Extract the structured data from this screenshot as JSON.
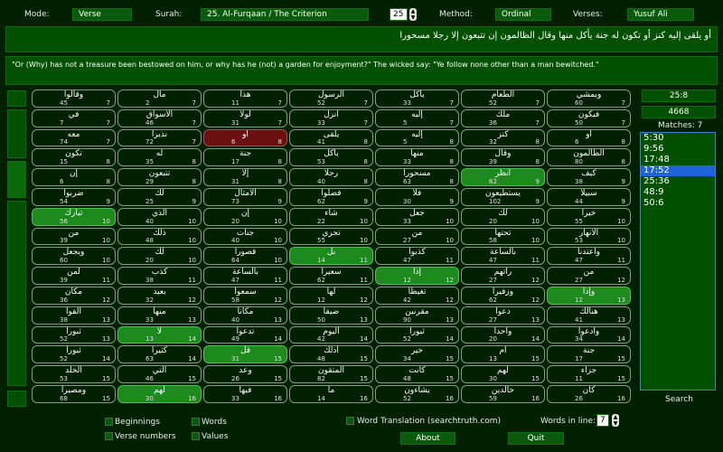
{
  "header": {
    "mode_label": "Mode:",
    "mode_value": "Verse",
    "surah_label": "Surah:",
    "surah_value": "25. Al-Furqaan / The Criterion",
    "verse_number": "25",
    "method_label": "Method:",
    "method_value": "Ordinal",
    "verses_label": "Verses:",
    "verses_value": "Yusuf Ali"
  },
  "arabic_text": "أو يلقى إليه كنز أو تكون له جنة يأكل منها وقال الظالمون إن تتبعون إلا رجلا مسحورا",
  "translation": "\"Or (Why) has not a treasure been bestowed on him, or why has he (not) a garden for enjoyment?\" The wicked say: \"Ye follow none other than a man bewitched.\"",
  "grid_rows": [
    [
      {
        "w": "وقالوا",
        "n": "45",
        "v": "7"
      },
      {
        "w": "مال",
        "n": "2",
        "v": "7"
      },
      {
        "w": "هذا",
        "n": "11",
        "v": "7"
      },
      {
        "w": "الرسول",
        "n": "52",
        "v": "7"
      },
      {
        "w": "يأكل",
        "n": "33",
        "v": "7"
      },
      {
        "w": "الطعام",
        "n": "52",
        "v": "7"
      },
      {
        "w": "ويمشي",
        "n": "60",
        "v": "7"
      }
    ],
    [
      {
        "w": "في",
        "n": "7",
        "v": "7"
      },
      {
        "w": "الأسواق",
        "n": "46",
        "v": "7"
      },
      {
        "w": "لولا",
        "n": "31",
        "v": "7"
      },
      {
        "w": "انزل",
        "n": "33",
        "v": "7"
      },
      {
        "w": "إليه",
        "n": "5",
        "v": "7"
      },
      {
        "w": "ملك",
        "n": "36",
        "v": "7"
      },
      {
        "w": "فيكون",
        "n": "50",
        "v": "7"
      }
    ],
    [
      {
        "w": "معه",
        "n": "74",
        "v": "7"
      },
      {
        "w": "نذيرا",
        "n": "72",
        "v": "7"
      },
      {
        "w": "أو",
        "n": "6",
        "v": "8",
        "s": "sel"
      },
      {
        "w": "يلقى",
        "n": "41",
        "v": "8"
      },
      {
        "w": "إليه",
        "n": "5",
        "v": "8"
      },
      {
        "w": "كنز",
        "n": "32",
        "v": "8"
      },
      {
        "w": "أو",
        "n": "6",
        "v": "8"
      }
    ],
    [
      {
        "w": "تكون",
        "n": "15",
        "v": "8"
      },
      {
        "w": "له",
        "n": "35",
        "v": "8"
      },
      {
        "w": "جنة",
        "n": "17",
        "v": "8"
      },
      {
        "w": "يأكل",
        "n": "53",
        "v": "8"
      },
      {
        "w": "منها",
        "n": "33",
        "v": "8"
      },
      {
        "w": "وقال",
        "n": "39",
        "v": "8"
      },
      {
        "w": "الظالمون",
        "n": "80",
        "v": "8"
      }
    ],
    [
      {
        "w": "إن",
        "n": "6",
        "v": "8"
      },
      {
        "w": "تتبعون",
        "n": "29",
        "v": "8"
      },
      {
        "w": "إلا",
        "n": "31",
        "v": "8"
      },
      {
        "w": "رجلا",
        "n": "40",
        "v": "8"
      },
      {
        "w": "مسحورا",
        "n": "63",
        "v": "8"
      },
      {
        "w": "انظر",
        "n": "62",
        "v": "9",
        "s": "hl"
      },
      {
        "w": "كيف",
        "n": "38",
        "v": "9"
      }
    ],
    [
      {
        "w": "ضربوا",
        "n": "54",
        "v": "9"
      },
      {
        "w": "لك",
        "n": "25",
        "v": "9"
      },
      {
        "w": "الأمثال",
        "n": "73",
        "v": "9"
      },
      {
        "w": "فضلوا",
        "n": "62",
        "v": "9"
      },
      {
        "w": "فلا",
        "n": "30",
        "v": "9"
      },
      {
        "w": "يستطيعون",
        "n": "102",
        "v": "9"
      },
      {
        "w": "سبيلا",
        "n": "44",
        "v": "9"
      }
    ],
    [
      {
        "w": "تبارك",
        "n": "56",
        "v": "10",
        "s": "hl"
      },
      {
        "w": "الذي",
        "n": "40",
        "v": "10"
      },
      {
        "w": "إن",
        "n": "20",
        "v": "10"
      },
      {
        "w": "شاء",
        "n": "22",
        "v": "10"
      },
      {
        "w": "جعل",
        "n": "33",
        "v": "10"
      },
      {
        "w": "لك",
        "n": "20",
        "v": "10"
      },
      {
        "w": "خيرا",
        "n": "55",
        "v": "10"
      }
    ],
    [
      {
        "w": "من",
        "n": "39",
        "v": "10"
      },
      {
        "w": "ذلك",
        "n": "48",
        "v": "10"
      },
      {
        "w": "جنات",
        "n": "40",
        "v": "10"
      },
      {
        "w": "تجري",
        "n": "55",
        "v": "10"
      },
      {
        "w": "من",
        "n": "27",
        "v": "10"
      },
      {
        "w": "تحتها",
        "n": "58",
        "v": "10"
      },
      {
        "w": "الأنهار",
        "n": "53",
        "v": "10"
      }
    ],
    [
      {
        "w": "ويجعل",
        "n": "60",
        "v": "10"
      },
      {
        "w": "لك",
        "n": "20",
        "v": "10"
      },
      {
        "w": "قصورا",
        "n": "64",
        "v": "10"
      },
      {
        "w": "بل",
        "n": "14",
        "v": "11",
        "s": "hl"
      },
      {
        "w": "كذبوا",
        "n": "47",
        "v": "11"
      },
      {
        "w": "بالساعة",
        "n": "47",
        "v": "11"
      },
      {
        "w": "وأعتدنا",
        "n": "47",
        "v": "11"
      }
    ],
    [
      {
        "w": "لمن",
        "n": "39",
        "v": "11"
      },
      {
        "w": "كذب",
        "n": "38",
        "v": "11"
      },
      {
        "w": "بالساعة",
        "n": "47",
        "v": "11"
      },
      {
        "w": "سعيرا",
        "n": "62",
        "v": "11"
      },
      {
        "w": "إذا",
        "n": "12",
        "v": "12",
        "s": "hl"
      },
      {
        "w": "رأتهم",
        "n": "27",
        "v": "12"
      },
      {
        "w": "من",
        "n": "27",
        "v": "12"
      }
    ],
    [
      {
        "w": "مكان",
        "n": "36",
        "v": "12"
      },
      {
        "w": "بعيد",
        "n": "32",
        "v": "12"
      },
      {
        "w": "سمعوا",
        "n": "58",
        "v": "12"
      },
      {
        "w": "لها",
        "n": "12",
        "v": "12"
      },
      {
        "w": "تغيظا",
        "n": "42",
        "v": "12"
      },
      {
        "w": "وزفيرا",
        "n": "62",
        "v": "12"
      },
      {
        "w": "وإذا",
        "n": "12",
        "v": "13",
        "s": "hl"
      }
    ],
    [
      {
        "w": "ألقوا",
        "n": "38",
        "v": "13"
      },
      {
        "w": "منها",
        "n": "33",
        "v": "13"
      },
      {
        "w": "مكانا",
        "n": "40",
        "v": "13"
      },
      {
        "w": "ضيقا",
        "n": "50",
        "v": "13"
      },
      {
        "w": "مقرنين",
        "n": "90",
        "v": "13"
      },
      {
        "w": "دعوا",
        "n": "27",
        "v": "13"
      },
      {
        "w": "هنالك",
        "n": "41",
        "v": "13"
      }
    ],
    [
      {
        "w": "ثبورا",
        "n": "52",
        "v": "13"
      },
      {
        "w": "لا",
        "n": "13",
        "v": "14",
        "s": "hl"
      },
      {
        "w": "تدعوا",
        "n": "49",
        "v": "14"
      },
      {
        "w": "اليوم",
        "n": "42",
        "v": "14"
      },
      {
        "w": "ثبورا",
        "n": "52",
        "v": "14"
      },
      {
        "w": "واحدا",
        "n": "20",
        "v": "14"
      },
      {
        "w": "وادعوا",
        "n": "34",
        "v": "14"
      }
    ],
    [
      {
        "w": "ثبورا",
        "n": "52",
        "v": "14"
      },
      {
        "w": "كثيرا",
        "n": "63",
        "v": "14"
      },
      {
        "w": "قل",
        "n": "31",
        "v": "15",
        "s": "hl"
      },
      {
        "w": "أذلك",
        "n": "48",
        "v": "15"
      },
      {
        "w": "خير",
        "n": "34",
        "v": "15"
      },
      {
        "w": "أم",
        "n": "13",
        "v": "15"
      },
      {
        "w": "جنة",
        "n": "17",
        "v": "15"
      }
    ],
    [
      {
        "w": "الخلد",
        "n": "53",
        "v": "15"
      },
      {
        "w": "التي",
        "n": "46",
        "v": "15"
      },
      {
        "w": "وعد",
        "n": "26",
        "v": "15"
      },
      {
        "w": "المتقون",
        "n": "82",
        "v": "15"
      },
      {
        "w": "كانت",
        "n": "48",
        "v": "15"
      },
      {
        "w": "لهم",
        "n": "30",
        "v": "15"
      },
      {
        "w": "جزاء",
        "n": "11",
        "v": "15"
      }
    ],
    [
      {
        "w": "ومصيرا",
        "n": "68",
        "v": "15"
      },
      {
        "w": "لهم",
        "n": "30",
        "v": "16",
        "s": "hl"
      },
      {
        "w": "فيها",
        "n": "33",
        "v": "16"
      },
      {
        "w": "ما",
        "n": "14",
        "v": "16"
      },
      {
        "w": "يشاءون",
        "n": "52",
        "v": "16"
      },
      {
        "w": "خالدين",
        "n": "59",
        "v": "16"
      },
      {
        "w": "كان",
        "n": "26",
        "v": "16"
      }
    ]
  ],
  "right_panel": {
    "reference": "25:8",
    "value": "4668",
    "matches_label": "Matches: 7",
    "matches": [
      "5:30",
      "9:56",
      "17:48",
      "17:52",
      "25:36",
      "48:9",
      "50:6"
    ],
    "selected_match": "17:52",
    "search_label": "Search"
  },
  "footer": {
    "beginnings_label": "Beginnings",
    "verse_numbers_label": "Verse numbers",
    "words_label": "Words",
    "values_label": "Values",
    "word_translation_label": "Word Translation (searchtruth.com)",
    "words_in_line_label": "Words in line:",
    "words_in_line_value": "7",
    "about_label": "About",
    "quit_label": "Quit"
  },
  "colors": {
    "background": "#002000",
    "panel": "#005000",
    "highlight": "#1d8a1d",
    "selected_red": "#6a1010",
    "list_selection": "#1e64d8"
  }
}
